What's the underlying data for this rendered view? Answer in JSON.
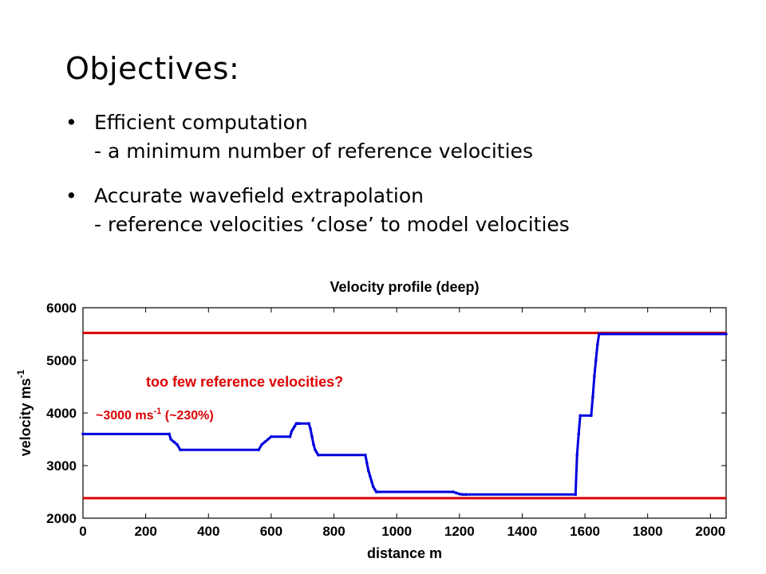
{
  "slide": {
    "title": "Objectives:",
    "bullets": [
      {
        "line1": "Efficient computation",
        "line2": "- a minimum number of reference velocities"
      },
      {
        "line1": "Accurate wavefield extrapolation",
        "line2": "- reference velocities ‘close’ to model velocities"
      }
    ],
    "bullet_glyph": "•"
  },
  "chart_data": {
    "type": "line",
    "title": "Velocity profile (deep)",
    "xlabel": "distance m",
    "ylabel": "velocity ms",
    "ylabel_superscript": "-1",
    "xlim": [
      0,
      2050
    ],
    "ylim": [
      2000,
      6000
    ],
    "xticks": [
      0,
      200,
      400,
      600,
      800,
      1000,
      1200,
      1400,
      1600,
      1800,
      2000
    ],
    "yticks": [
      2000,
      3000,
      4000,
      5000,
      6000
    ],
    "grid": false,
    "series": [
      {
        "color": "#0000dd",
        "style": "dotted-step",
        "x": [
          0,
          275,
          280,
          290,
          300,
          310,
          560,
          570,
          580,
          590,
          600,
          660,
          665,
          670,
          675,
          680,
          685,
          690,
          720,
          725,
          730,
          735,
          740,
          745,
          750,
          900,
          905,
          910,
          915,
          920,
          925,
          930,
          935,
          940,
          1180,
          1190,
          1200,
          1210,
          1220,
          1570,
          1575,
          1580,
          1585,
          1620,
          1625,
          1630,
          1635,
          1640,
          1645,
          2050
        ],
        "y": [
          3600,
          3600,
          3500,
          3450,
          3400,
          3300,
          3300,
          3400,
          3450,
          3500,
          3550,
          3550,
          3650,
          3700,
          3750,
          3800,
          3800,
          3800,
          3800,
          3700,
          3550,
          3400,
          3300,
          3250,
          3200,
          3200,
          3050,
          2900,
          2800,
          2700,
          2600,
          2550,
          2500,
          2500,
          2500,
          2480,
          2460,
          2450,
          2450,
          2450,
          3200,
          3600,
          3950,
          3950,
          4300,
          4700,
          5000,
          5300,
          5500,
          5500
        ]
      }
    ],
    "reference_lines": [
      {
        "y": 5520,
        "color": "#dd0000"
      },
      {
        "y": 2380,
        "color": "#dd0000"
      }
    ],
    "annotations": [
      {
        "text": "too few reference velocities?",
        "color": "#dd0000"
      },
      {
        "text": "~3000 ms",
        "superscript": "-1",
        "suffix": " (~230%)",
        "color": "#dd0000"
      }
    ]
  }
}
